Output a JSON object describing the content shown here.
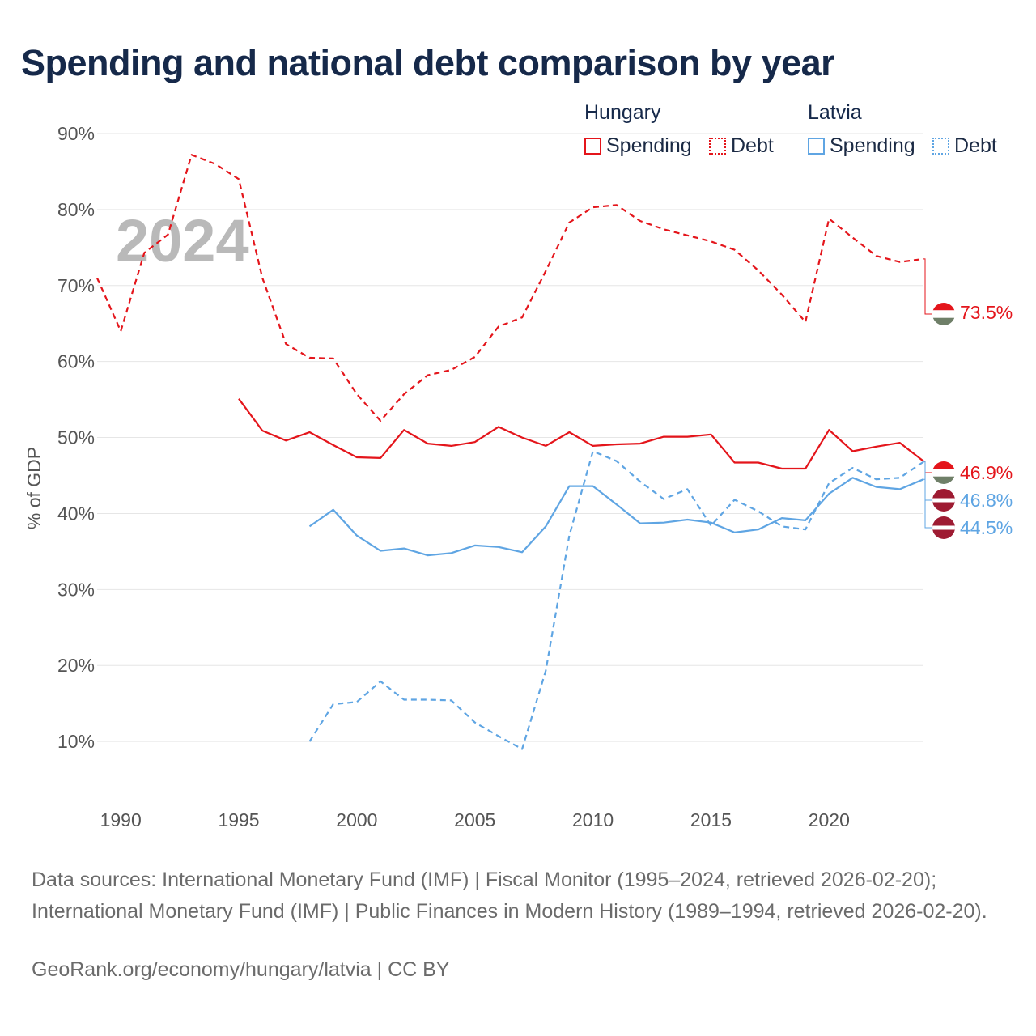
{
  "title": "Spending and national debt comparison by year",
  "legend": {
    "groups": [
      {
        "country": "Hungary",
        "items": [
          {
            "label": "Spending",
            "style": "solid",
            "color": "#e4151b"
          },
          {
            "label": "Debt",
            "style": "dotted",
            "color": "#e4151b"
          }
        ]
      },
      {
        "country": "Latvia",
        "items": [
          {
            "label": "Spending",
            "style": "solid",
            "color": "#5fa5e3"
          },
          {
            "label": "Debt",
            "style": "dotted",
            "color": "#5fa5e3"
          }
        ]
      }
    ]
  },
  "chart_data": {
    "type": "line",
    "year_label": "2024",
    "ylabel": "% of GDP",
    "xlim": [
      1989,
      2024
    ],
    "ylim": [
      0,
      90
    ],
    "x_ticks": [
      1990,
      1995,
      2000,
      2005,
      2010,
      2015,
      2020
    ],
    "y_ticks": [
      10,
      20,
      30,
      40,
      50,
      60,
      70,
      80,
      90
    ],
    "y_tick_labels": [
      "10%",
      "20%",
      "30%",
      "40%",
      "50%",
      "60%",
      "70%",
      "80%",
      "90%"
    ],
    "series": [
      {
        "name": "Hungary Debt",
        "country": "Hungary",
        "metric": "Debt",
        "color": "#e4151b",
        "dashed": true,
        "end_label": "73.5%",
        "end_value": 73.5,
        "x": [
          1989,
          1990,
          1991,
          1992,
          1993,
          1994,
          1995,
          1996,
          1997,
          1998,
          1999,
          2000,
          2001,
          2002,
          2003,
          2004,
          2005,
          2006,
          2007,
          2008,
          2009,
          2010,
          2011,
          2012,
          2013,
          2014,
          2015,
          2016,
          2017,
          2018,
          2019,
          2020,
          2021,
          2022,
          2023,
          2024
        ],
        "values": [
          71,
          64,
          74.3,
          76.7,
          87.2,
          86,
          84,
          71,
          62.3,
          60.5,
          60.4,
          55.7,
          52.2,
          55.7,
          58.2,
          58.9,
          60.6,
          64.6,
          65.8,
          71.9,
          78.3,
          80.3,
          80.6,
          78.5,
          77.4,
          76.6,
          75.8,
          74.7,
          72,
          68.8,
          65.2,
          78.8,
          76.3,
          73.9,
          73.1,
          73.5
        ]
      },
      {
        "name": "Hungary Spending",
        "country": "Hungary",
        "metric": "Spending",
        "color": "#e4151b",
        "dashed": false,
        "end_label": "46.9%",
        "end_value": 46.9,
        "x": [
          1995,
          1996,
          1997,
          1998,
          1999,
          2000,
          2001,
          2002,
          2003,
          2004,
          2005,
          2006,
          2007,
          2008,
          2009,
          2010,
          2011,
          2012,
          2013,
          2014,
          2015,
          2016,
          2017,
          2018,
          2019,
          2020,
          2021,
          2022,
          2023,
          2024
        ],
        "values": [
          55.1,
          50.9,
          49.6,
          50.7,
          49,
          47.4,
          47.3,
          51,
          49.2,
          48.9,
          49.4,
          51.4,
          50,
          48.9,
          50.7,
          48.9,
          49.1,
          49.2,
          50.1,
          50.1,
          50.4,
          46.7,
          46.7,
          45.9,
          45.9,
          51,
          48.2,
          48.8,
          49.3,
          46.9
        ]
      },
      {
        "name": "Latvia Debt",
        "country": "Latvia",
        "metric": "Debt",
        "color": "#5fa5e3",
        "dashed": true,
        "end_label": "46.8%",
        "end_value": 46.8,
        "x": [
          1998,
          1999,
          2000,
          2001,
          2002,
          2003,
          2004,
          2005,
          2006,
          2007,
          2008,
          2009,
          2010,
          2011,
          2012,
          2013,
          2014,
          2015,
          2016,
          2017,
          2018,
          2019,
          2020,
          2021,
          2022,
          2023,
          2024
        ],
        "values": [
          10,
          14.9,
          15.2,
          17.9,
          15.5,
          15.5,
          15.4,
          12.5,
          10.7,
          9,
          19.3,
          37.1,
          48.2,
          46.9,
          44.2,
          41.9,
          43.2,
          38.4,
          41.8,
          40.3,
          38.3,
          37.9,
          44,
          46,
          44.5,
          44.7,
          46.8
        ]
      },
      {
        "name": "Latvia Spending",
        "country": "Latvia",
        "metric": "Spending",
        "color": "#5fa5e3",
        "dashed": false,
        "end_label": "44.5%",
        "end_value": 44.5,
        "x": [
          1998,
          1999,
          2000,
          2001,
          2002,
          2003,
          2004,
          2005,
          2006,
          2007,
          2008,
          2009,
          2010,
          2011,
          2012,
          2013,
          2014,
          2015,
          2016,
          2017,
          2018,
          2019,
          2020,
          2021,
          2022,
          2023,
          2024
        ],
        "values": [
          38.3,
          40.5,
          37.1,
          35.1,
          35.4,
          34.5,
          34.8,
          35.8,
          35.6,
          34.9,
          38.3,
          43.6,
          43.6,
          41.2,
          38.7,
          38.8,
          39.2,
          38.8,
          37.5,
          37.9,
          39.4,
          39.1,
          42.6,
          44.7,
          43.5,
          43.2,
          44.5
        ]
      }
    ]
  },
  "footer": {
    "sources": "Data sources: International Monetary Fund (IMF) | Fiscal Monitor (1995–2024, retrieved 2026-02-20); International Monetary Fund (IMF) | Public Finances in Modern History (1989–1994, retrieved 2026-02-20).",
    "credit": "GeoRank.org/economy/hungary/latvia | CC BY"
  }
}
